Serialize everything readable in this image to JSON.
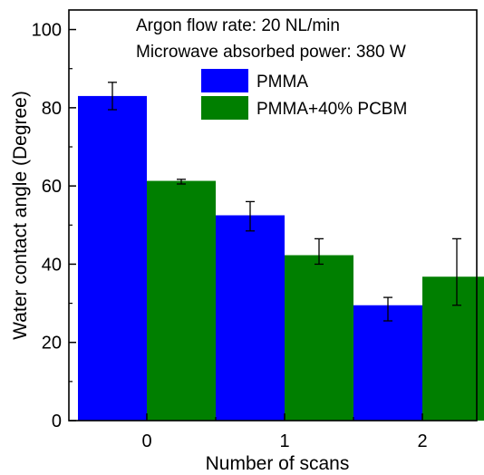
{
  "chart_data": {
    "type": "bar",
    "categories": [
      "0",
      "1",
      "2"
    ],
    "series": [
      {
        "name": "PMMA",
        "color": "#0000ff",
        "values": [
          83,
          52.5,
          29.5
        ],
        "err_low": [
          79.5,
          48.5,
          25.5
        ],
        "err_high": [
          86.5,
          56,
          31.5
        ]
      },
      {
        "name": "PMMA+40% PCBM",
        "color": "#007f00",
        "values": [
          61.3,
          42.3,
          36.8
        ],
        "err_low": [
          60.5,
          40,
          29.5
        ],
        "err_high": [
          61.7,
          46.5,
          46.5
        ]
      }
    ],
    "xlabel": "Number of scans",
    "ylabel": "Water contact angle (Degree)",
    "ylim": [
      0,
      105
    ],
    "yticks": [
      0,
      20,
      40,
      60,
      80,
      100
    ],
    "annotations": [
      "Argon flow rate: 20 NL/min",
      "Microwave absorbed power: 380 W"
    ],
    "legend_position": "top-right"
  }
}
